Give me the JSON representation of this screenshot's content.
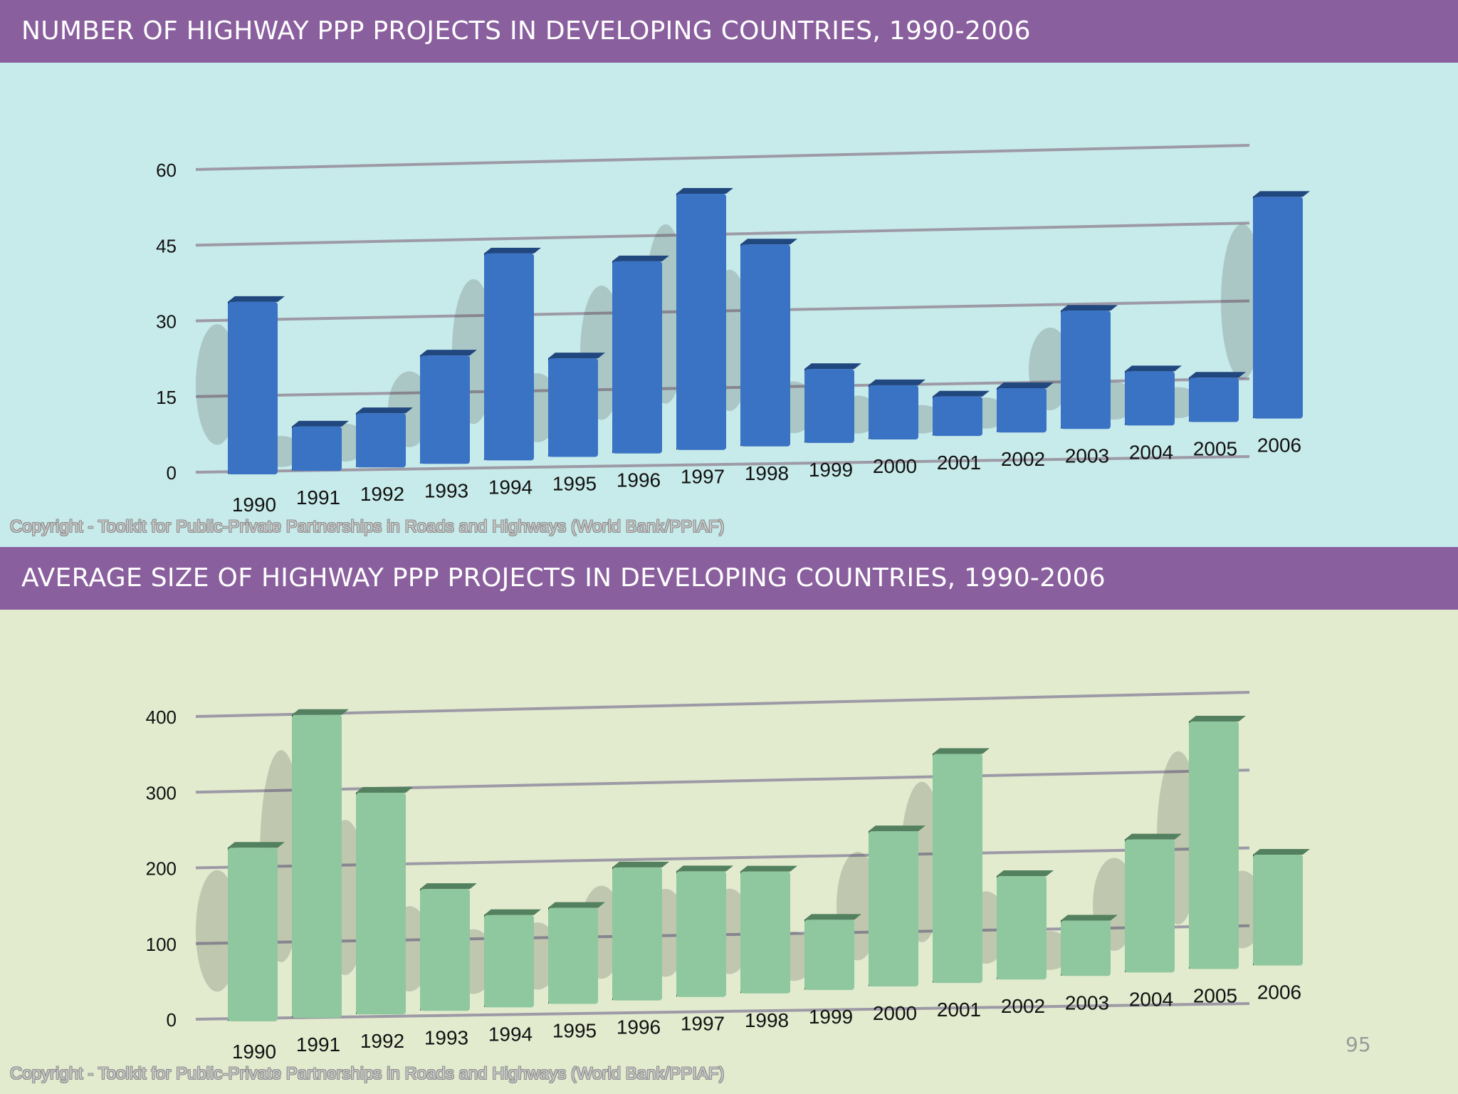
{
  "chart_data": [
    {
      "type": "bar",
      "title": "NUMBER OF HIGHWAY PPP PROJECTS IN DEVELOPING COUNTRIES, 1990-2006",
      "categories": [
        "1990",
        "1991",
        "1992",
        "1993",
        "1994",
        "1995",
        "1996",
        "1997",
        "1998",
        "1999",
        "2000",
        "2001",
        "2002",
        "2003",
        "2004",
        "2005",
        "2006"
      ],
      "values": [
        35,
        9,
        11,
        22,
        42,
        20,
        39,
        52,
        41,
        15,
        11,
        8,
        9,
        24,
        11,
        9,
        45
      ],
      "yticks": [
        "0",
        "15",
        "30",
        "45",
        "60"
      ],
      "ylim": [
        0,
        60
      ],
      "xlabel": "",
      "ylabel": "",
      "colors": {
        "bar": "#3a72c4",
        "bar_side": "#1a2f58",
        "bar_top": "#21477f",
        "background": "#c7ebea"
      },
      "copyright": "Copyright - Toolkit for Public-Private Partnerships in Roads and Highways (World Bank/PPIAF)"
    },
    {
      "type": "bar",
      "title": "AVERAGE SIZE OF HIGHWAY PPP PROJECTS IN DEVELOPING COUNTRIES, 1990-2006",
      "categories": [
        "1990",
        "1991",
        "1992",
        "1993",
        "1994",
        "1995",
        "1996",
        "1997",
        "1998",
        "1999",
        "2000",
        "2001",
        "2002",
        "2003",
        "2004",
        "2005",
        "2006"
      ],
      "values": [
        235,
        410,
        300,
        165,
        125,
        130,
        180,
        170,
        165,
        95,
        210,
        310,
        140,
        75,
        180,
        335,
        150
      ],
      "yticks": [
        "0",
        "100",
        "200",
        "300",
        "400"
      ],
      "ylim": [
        0,
        400
      ],
      "xlabel": "",
      "ylabel": "",
      "colors": {
        "bar": "#8fc79f",
        "bar_side": "#2f5236",
        "bar_top": "#53805e",
        "background": "#e2ebce"
      },
      "copyright": "Copyright - Toolkit for Public-Private Partnerships in Roads and Highways (World Bank/PPIAF)"
    }
  ],
  "page_number": "95"
}
